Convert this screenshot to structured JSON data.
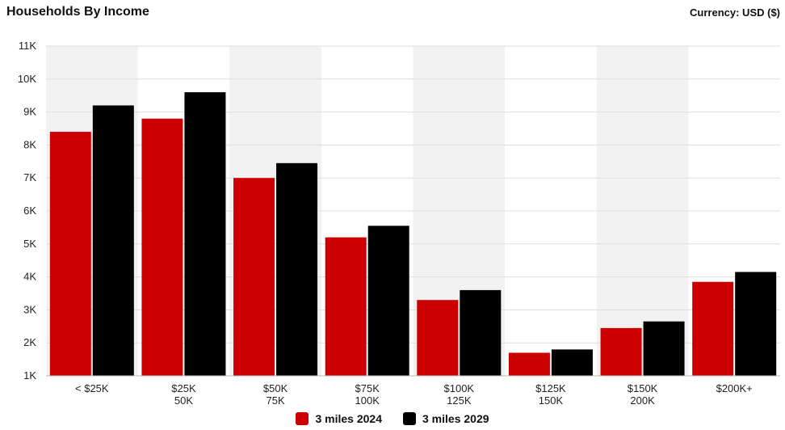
{
  "header": {
    "title": "Households By Income",
    "currency": "Currency: USD ($)"
  },
  "chart_data": {
    "type": "bar",
    "title": "Households By Income",
    "categories": [
      [
        "< $25K"
      ],
      [
        "$25K",
        "50K"
      ],
      [
        "$50K",
        "75K"
      ],
      [
        "$75K",
        "100K"
      ],
      [
        "$100K",
        "125K"
      ],
      [
        "$125K",
        "150K"
      ],
      [
        "$150K",
        "200K"
      ],
      [
        "$200K+"
      ]
    ],
    "series": [
      {
        "name": "3 miles 2024",
        "color": "#cc0000",
        "values": [
          8400,
          8800,
          7000,
          5200,
          3300,
          1700,
          2450,
          3850
        ]
      },
      {
        "name": "3 miles 2029",
        "color": "#000000",
        "values": [
          9200,
          9600,
          7450,
          5550,
          3600,
          1800,
          2650,
          4150
        ]
      }
    ],
    "ylim": [
      1000,
      11000
    ],
    "yticks": [
      "1K",
      "2K",
      "3K",
      "4K",
      "5K",
      "6K",
      "7K",
      "8K",
      "9K",
      "10K",
      "11K"
    ],
    "grid": true,
    "alternating_band_color": "#f2f2f2",
    "legend_position": "bottom-center"
  }
}
